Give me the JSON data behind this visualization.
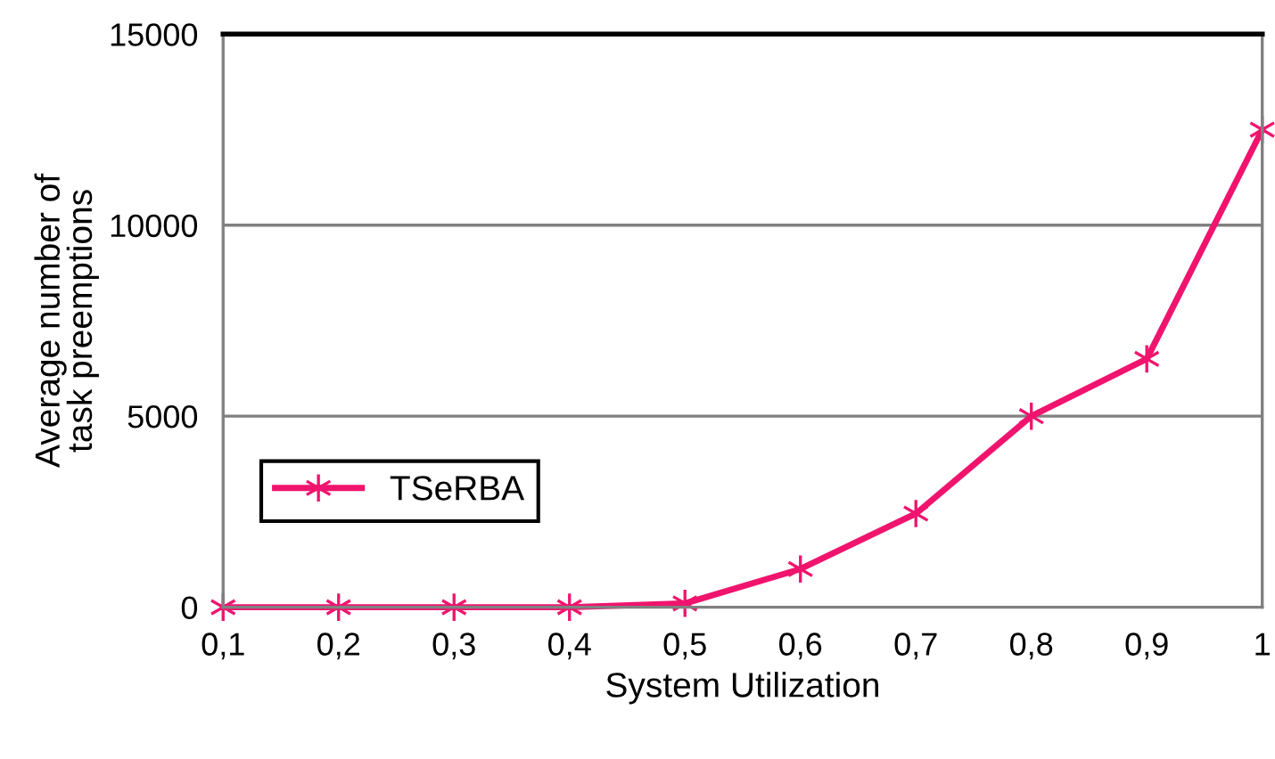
{
  "chart_data": {
    "type": "line",
    "xlabel": "System Utilization",
    "ylabel": "Average number of\ntask preemptions",
    "categories": [
      "0,1",
      "0,2",
      "0,3",
      "0,4",
      "0,5",
      "0,6",
      "0,7",
      "0,8",
      "0,9",
      "1"
    ],
    "series": [
      {
        "name": "TSeRBA",
        "color": "#f0146e",
        "values": [
          0,
          0,
          0,
          0,
          100,
          1000,
          2450,
          5000,
          6500,
          12500
        ]
      }
    ],
    "ylim": [
      0,
      15000
    ],
    "yticks": [
      0,
      5000,
      10000,
      15000
    ],
    "grid": "y",
    "legend": "bottom left",
    "marker": "cross",
    "line_style": "solid"
  }
}
